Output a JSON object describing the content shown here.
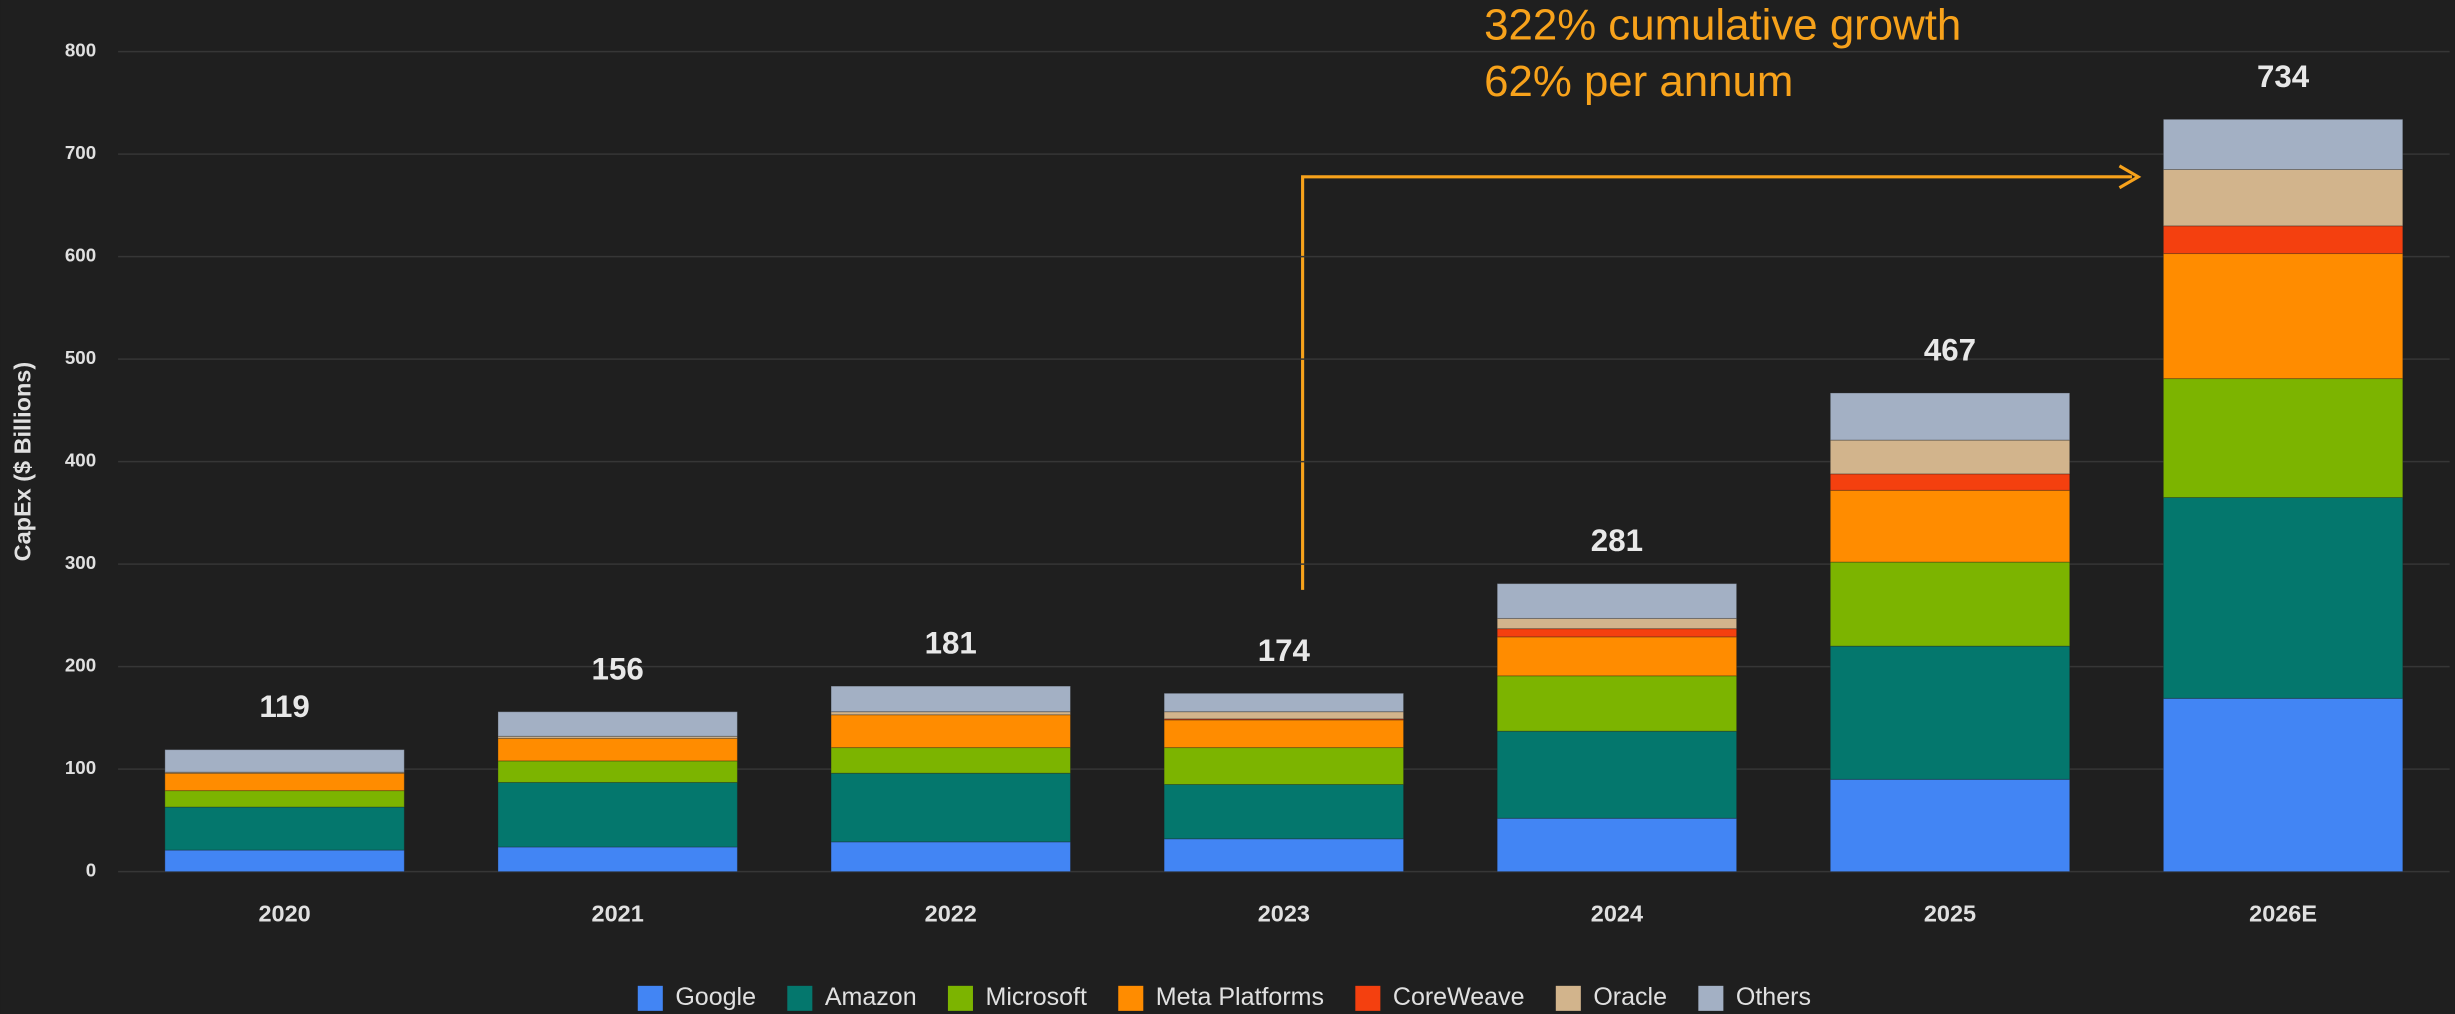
{
  "chart_data": {
    "type": "stacked_bar",
    "y_label": "CapEx ($ Billions)",
    "annotations": [
      "322% cumulative growth",
      "62% per annum"
    ],
    "categories": [
      "2020",
      "2021",
      "2022",
      "2023",
      "2024",
      "2025",
      "2026E"
    ],
    "totals": [
      "119",
      "156",
      "181",
      "174",
      "281",
      "467",
      "734"
    ],
    "series": [
      {
        "name": "Google",
        "color": "#4285f4",
        "values": [
          21,
          24,
          29,
          32,
          52,
          90,
          169
        ]
      },
      {
        "name": "Amazon",
        "color": "#04776d",
        "values": [
          42,
          63,
          67,
          53,
          85,
          130,
          196
        ]
      },
      {
        "name": "Microsoft",
        "color": "#7cb400",
        "values": [
          16,
          21,
          25,
          36,
          54,
          82,
          116
        ]
      },
      {
        "name": "Meta Platforms",
        "color": "#ff8c00",
        "values": [
          17,
          22,
          32,
          27,
          38,
          70,
          122
        ]
      },
      {
        "name": "CoreWeave",
        "color": "#f4400f",
        "values": [
          0,
          0,
          0,
          1,
          8,
          16,
          27
        ]
      },
      {
        "name": "Oracle",
        "color": "#d2b48c",
        "values": [
          1,
          2,
          3,
          7,
          10,
          33,
          55
        ]
      },
      {
        "name": "Others",
        "color": "#a3b0c4",
        "values": [
          22,
          24,
          25,
          18,
          34,
          46,
          49
        ]
      }
    ],
    "ylim": [
      0,
      800
    ],
    "yticks": [
      0,
      100,
      200,
      300,
      400,
      500,
      600,
      700,
      800
    ],
    "grid": true
  }
}
